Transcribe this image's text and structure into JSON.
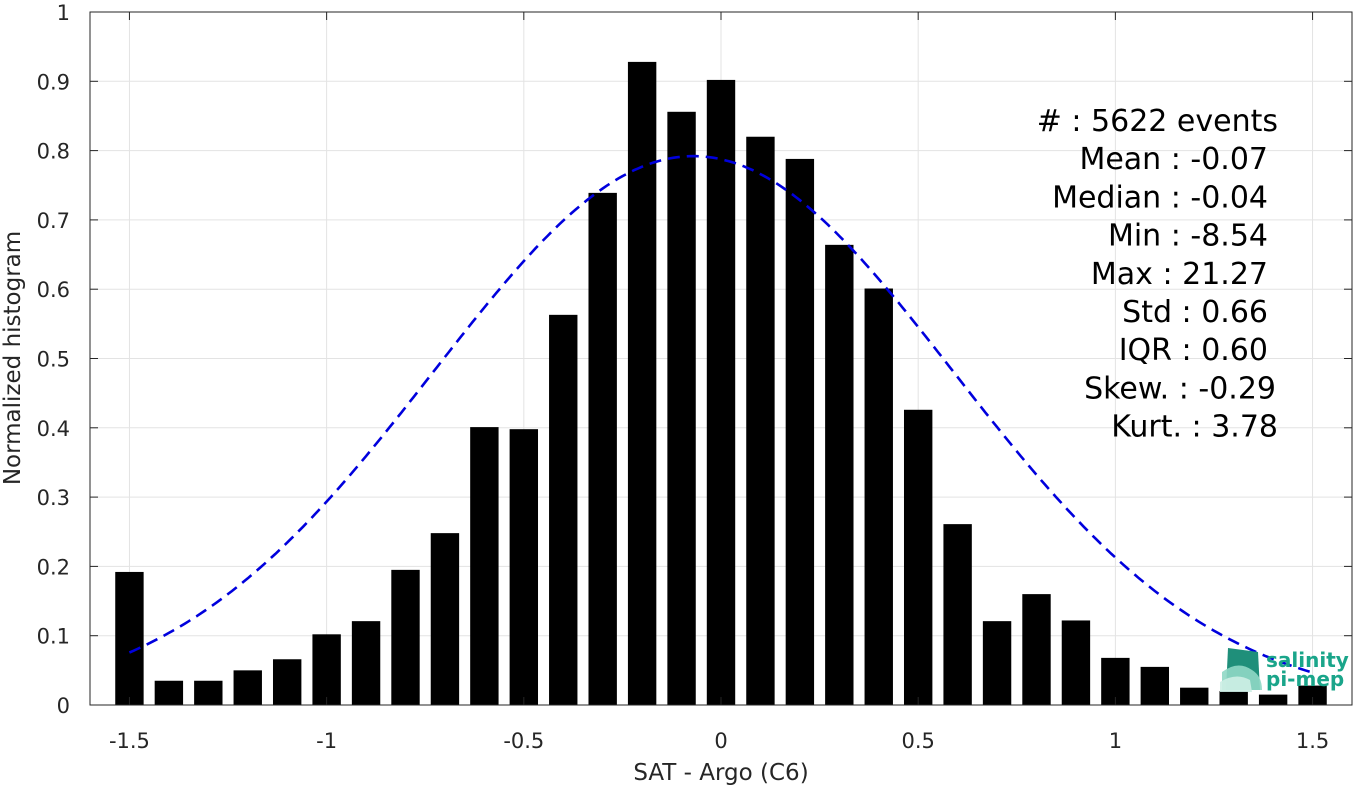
{
  "chart_data": {
    "type": "bar",
    "xlabel": "SAT - Argo (C6)",
    "ylabel": "Normalized histogram",
    "xlim": [
      -1.6,
      1.6
    ],
    "ylim": [
      0,
      1
    ],
    "grid": true,
    "xticks": [
      -1.5,
      -1,
      -0.5,
      0,
      0.5,
      1,
      1.5
    ],
    "xtick_labels": [
      "-1.5",
      "-1",
      "-0.5",
      "0",
      "0.5",
      "1",
      "1.5"
    ],
    "yticks": [
      0,
      0.1,
      0.2,
      0.3,
      0.4,
      0.5,
      0.6,
      0.7,
      0.8,
      0.9,
      1
    ],
    "ytick_labels": [
      "0",
      "0.1",
      "0.2",
      "0.3",
      "0.4",
      "0.5",
      "0.6",
      "0.7",
      "0.8",
      "0.9",
      "1"
    ],
    "bar_color": "#000000",
    "bins": [
      -1.5,
      -1.4,
      -1.3,
      -1.2,
      -1.1,
      -1.0,
      -0.9,
      -0.8,
      -0.7,
      -0.6,
      -0.5,
      -0.4,
      -0.3,
      -0.2,
      -0.1,
      0.0,
      0.1,
      0.2,
      0.3,
      0.4,
      0.5,
      0.6,
      0.7,
      0.8,
      0.9,
      1.0,
      1.1,
      1.2,
      1.3,
      1.4,
      1.5
    ],
    "values": [
      0.192,
      0.035,
      0.035,
      0.05,
      0.066,
      0.102,
      0.121,
      0.195,
      0.248,
      0.401,
      0.398,
      0.563,
      0.739,
      0.928,
      0.856,
      0.902,
      0.82,
      0.788,
      0.664,
      0.601,
      0.426,
      0.261,
      0.121,
      0.16,
      0.122,
      0.068,
      0.055,
      0.025,
      0.02,
      0.015,
      0.028
    ],
    "fit_curve": {
      "type": "gaussian",
      "mean": -0.07,
      "std": 0.66,
      "peak": 0.792,
      "style": "dashed",
      "color": "#0000dd"
    },
    "stats_lines": [
      "#  : 5622 events",
      "Mean : -0.07",
      "Median : -0.04",
      "Min : -8.54",
      "Max : 21.27",
      "Std : 0.66",
      "IQR : 0.60",
      "Skew. : -0.29",
      "Kurt. : 3.78"
    ]
  },
  "logo": {
    "line1": "salinity",
    "line2": "pi-mep",
    "color": "#1aa58a"
  }
}
